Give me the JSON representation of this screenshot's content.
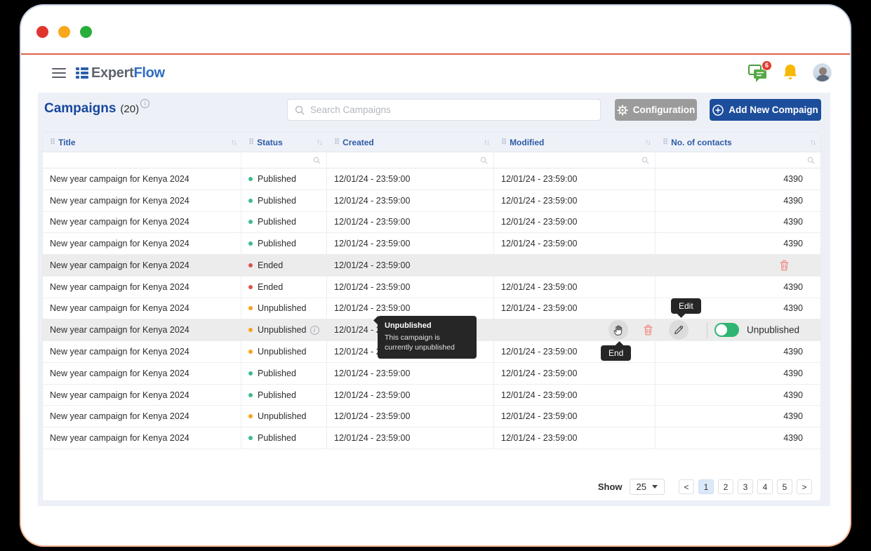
{
  "appbar": {
    "logo": {
      "expert": "Expert",
      "flow": "Flow"
    },
    "chat_badge": "6"
  },
  "page": {
    "title": "Campaigns",
    "count": "(20)"
  },
  "toolbar": {
    "search_placeholder": "Search Campaigns",
    "configuration": "Configuration",
    "add_new": "Add New Compaign"
  },
  "table": {
    "columns": [
      "Title",
      "Status",
      "Created",
      "Modified",
      "No. of contacts"
    ],
    "rows": [
      {
        "title": "New year campaign for Kenya 2024",
        "status": "Published",
        "status_type": "published",
        "created": "12/01/24 - 23:59:00",
        "modified": "12/01/24 - 23:59:00",
        "contacts": "4390",
        "highlight": false,
        "info": false,
        "actions": null
      },
      {
        "title": "New year campaign for Kenya 2024",
        "status": "Published",
        "status_type": "published",
        "created": "12/01/24 - 23:59:00",
        "modified": "12/01/24 - 23:59:00",
        "contacts": "4390",
        "highlight": false,
        "info": false,
        "actions": null
      },
      {
        "title": "New year campaign for Kenya 2024",
        "status": "Published",
        "status_type": "published",
        "created": "12/01/24 - 23:59:00",
        "modified": "12/01/24 - 23:59:00",
        "contacts": "4390",
        "highlight": false,
        "info": false,
        "actions": null
      },
      {
        "title": "New year campaign for Kenya 2024",
        "status": "Published",
        "status_type": "published",
        "created": "12/01/24 - 23:59:00",
        "modified": "12/01/24 - 23:59:00",
        "contacts": "4390",
        "highlight": false,
        "info": false,
        "actions": null
      },
      {
        "title": "New year campaign for Kenya 2024",
        "status": "Ended",
        "status_type": "ended",
        "created": "12/01/24 - 23:59:00",
        "modified": "",
        "contacts": "",
        "highlight": true,
        "info": false,
        "actions": "trash"
      },
      {
        "title": "New year campaign for Kenya 2024",
        "status": "Ended",
        "status_type": "ended",
        "created": "12/01/24 - 23:59:00",
        "modified": "12/01/24 - 23:59:00",
        "contacts": "4390",
        "highlight": false,
        "info": false,
        "actions": null
      },
      {
        "title": "New year campaign for Kenya 2024",
        "status": "Unpublished",
        "status_type": "unpublished",
        "created": "12/01/24 - 23:59:00",
        "modified": "12/01/24 - 23:59:00",
        "contacts": "4390",
        "highlight": false,
        "info": false,
        "actions": null
      },
      {
        "title": "New year campaign for Kenya 2024",
        "status": "Unpublished",
        "status_type": "unpublished",
        "created": "12/01/24 - 23:59:00",
        "modified": "",
        "contacts": "",
        "highlight": true,
        "info": true,
        "actions": "full"
      },
      {
        "title": "New year campaign for Kenya 2024",
        "status": "Unpublished",
        "status_type": "unpublished",
        "created": "12/01/24 - 23:59:00",
        "modified": "12/01/24 - 23:59:00",
        "contacts": "4390",
        "highlight": false,
        "info": false,
        "actions": null
      },
      {
        "title": "New year campaign for Kenya 2024",
        "status": "Published",
        "status_type": "published",
        "created": "12/01/24 - 23:59:00",
        "modified": "12/01/24 - 23:59:00",
        "contacts": "4390",
        "highlight": false,
        "info": false,
        "actions": null
      },
      {
        "title": "New year campaign for Kenya 2024",
        "status": "Published",
        "status_type": "published",
        "created": "12/01/24 - 23:59:00",
        "modified": "12/01/24 - 23:59:00",
        "contacts": "4390",
        "highlight": false,
        "info": false,
        "actions": null
      },
      {
        "title": "New year campaign for Kenya 2024",
        "status": "Unpublished",
        "status_type": "unpublished",
        "created": "12/01/24 - 23:59:00",
        "modified": "12/01/24 - 23:59:00",
        "contacts": "4390",
        "highlight": false,
        "info": false,
        "actions": null
      },
      {
        "title": "New year campaign for Kenya 2024",
        "status": "Published",
        "status_type": "published",
        "created": "12/01/24 - 23:59:00",
        "modified": "12/01/24 - 23:59:00",
        "contacts": "4390",
        "highlight": false,
        "info": false,
        "actions": null
      }
    ]
  },
  "row_actions": {
    "toggle_label": "Unpublished"
  },
  "tooltips": {
    "status": {
      "title": "Unpublished",
      "body": "This campaign is currently unpublished"
    },
    "edit": "Edit",
    "end": "End"
  },
  "pagination": {
    "show": "Show",
    "page_size": "25",
    "prev": "<",
    "pages": [
      "1",
      "2",
      "3",
      "4",
      "5"
    ],
    "active_page": "1",
    "next": ">"
  },
  "colors": {
    "published": "#3cbc87",
    "ended": "#e8645a",
    "unpublished": "#f9a11b",
    "accent_blue": "#1d4e9c",
    "accent_line": "#e0614a",
    "badge_red": "#e23b33"
  }
}
